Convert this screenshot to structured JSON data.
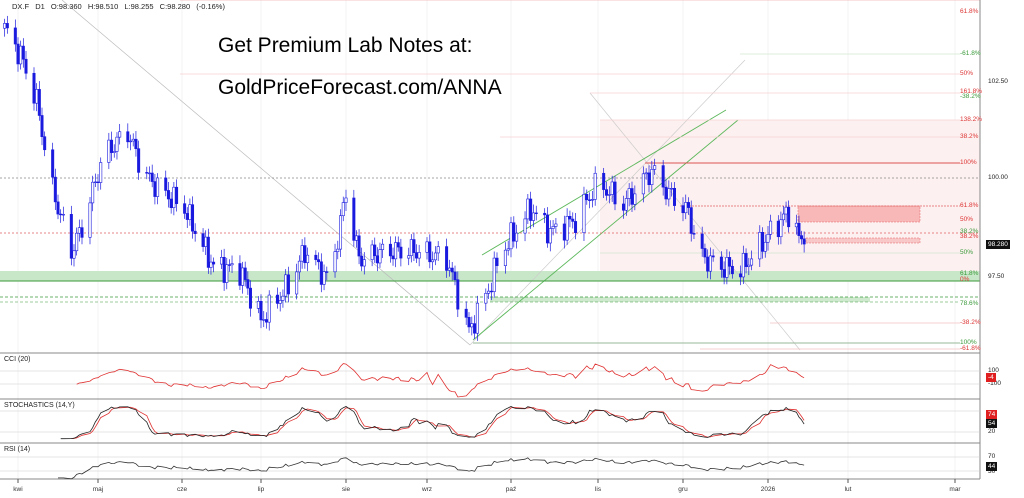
{
  "header": {
    "symbol": "DX.F",
    "timeframe": "D1",
    "open": "O:98.360",
    "high": "H:98.510",
    "low": "L:98.255",
    "close": "C:98.280",
    "change": "(-0.16%)"
  },
  "promo": {
    "line1": "Get Premium Lab Notes at:",
    "line2": "GoldPriceForecast.com/ANNA"
  },
  "panels": {
    "cci": "CCI (20)",
    "stoch": "STOCHASTICS (14,Y)",
    "rsi": "RSI (14)"
  },
  "colors": {
    "candle": "#1a1adf",
    "red": "#e03030",
    "green": "#3a9a3a",
    "pink_zone": "#fdeeee"
  },
  "chart_data": {
    "type": "candlestick",
    "title": "",
    "x_ticks": [
      "kwi",
      "maj",
      "cze",
      "lip",
      "sie",
      "wrz",
      "paź",
      "lis",
      "gru",
      "2026",
      "lut",
      "mar"
    ],
    "y_ticks": [
      "102.50",
      "100.00",
      "97.50"
    ],
    "last_price": "98.280",
    "approx_closes": [
      [
        "2025-03-27",
        103.9
      ],
      [
        "2025-04-02",
        103.2
      ],
      [
        "2025-04-08",
        102.0
      ],
      [
        "2025-04-14",
        99.7
      ],
      [
        "2025-04-21",
        98.1
      ],
      [
        "2025-04-25",
        98.7
      ],
      [
        "2025-05-03",
        100.6
      ],
      [
        "2025-05-12",
        101.2
      ],
      [
        "2025-05-18",
        100.1
      ],
      [
        "2025-05-24",
        99.7
      ],
      [
        "2025-06-02",
        99.2
      ],
      [
        "2025-06-13",
        97.7
      ],
      [
        "2025-06-23",
        97.6
      ],
      [
        "2025-07-01",
        96.3
      ],
      [
        "2025-07-11",
        97.2
      ],
      [
        "2025-07-17",
        98.1
      ],
      [
        "2025-07-26",
        97.3
      ],
      [
        "2025-08-01",
        99.6
      ],
      [
        "2025-08-06",
        97.9
      ],
      [
        "2025-08-17",
        98.1
      ],
      [
        "2025-08-28",
        98.1
      ],
      [
        "2025-09-08",
        97.9
      ],
      [
        "2025-09-16",
        96.0
      ],
      [
        "2025-09-23",
        97.1
      ],
      [
        "2025-09-27",
        98.0
      ],
      [
        "2025-10-08",
        99.2
      ],
      [
        "2025-10-15",
        98.6
      ],
      [
        "2025-10-24",
        98.9
      ],
      [
        "2025-11-01",
        99.9
      ],
      [
        "2025-11-10",
        99.3
      ],
      [
        "2025-11-20",
        100.2
      ],
      [
        "2025-11-26",
        99.6
      ],
      [
        "2025-12-03",
        99.1
      ],
      [
        "2025-12-07",
        98.0
      ],
      [
        "2025-12-14",
        97.7
      ],
      [
        "2025-12-22",
        97.6
      ],
      [
        "2026-01-01",
        98.5
      ],
      [
        "2026-01-10",
        99.2
      ],
      [
        "2026-01-13",
        98.4
      ],
      [
        "2026-01-15",
        98.28
      ]
    ],
    "fib_labels_red": [
      "61.8%",
      "50%",
      "161.8%",
      "138.2%",
      "38.2%",
      "100%",
      "61.8%",
      "50%",
      "38.2%",
      "0%",
      "-38.2%",
      "-61.8%"
    ],
    "fib_labels_green": [
      "-61.8%",
      "-38.2%",
      "0%",
      "38.2%",
      "50%",
      "61.8%",
      "78.6%",
      "100%"
    ],
    "indicators": {
      "cci": {
        "levels": [
          "100",
          "-100"
        ],
        "last": "-4"
      },
      "stoch": {
        "levels": [
          "20"
        ],
        "last_k": "74",
        "last_d": "54"
      },
      "rsi": {
        "levels": [
          "70",
          "30"
        ],
        "last": "44"
      }
    }
  }
}
